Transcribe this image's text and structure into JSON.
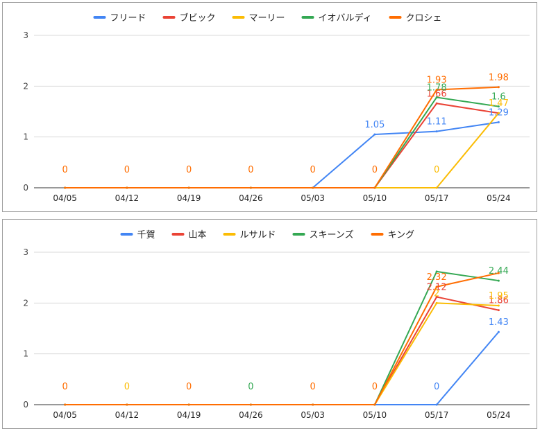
{
  "chart_data": [
    {
      "type": "line",
      "title": "",
      "xlabel": "",
      "ylabel": "",
      "categories": [
        "04/05",
        "04/12",
        "04/19",
        "04/26",
        "05/03",
        "05/10",
        "05/17",
        "05/24"
      ],
      "ylim": [
        0,
        3
      ],
      "yticks": [
        0,
        1,
        2,
        3
      ],
      "grid": true,
      "legend_position": "top",
      "series": [
        {
          "name": "フリード",
          "color": "#4285F4",
          "values": [
            0,
            0,
            0,
            0,
            0,
            1.05,
            1.11,
            1.29
          ],
          "labels": [
            null,
            null,
            null,
            null,
            null,
            "1.05",
            "1.11",
            "1.29"
          ]
        },
        {
          "name": "ブビック",
          "color": "#EA4335",
          "values": [
            0,
            0,
            0,
            0,
            0,
            0,
            1.66,
            1.47
          ],
          "labels": [
            null,
            null,
            null,
            null,
            null,
            null,
            "1.66",
            null
          ]
        },
        {
          "name": "マーリー",
          "color": "#FBBC04",
          "values": [
            0,
            0,
            0,
            0,
            0,
            0,
            0,
            1.47
          ],
          "labels": [
            null,
            null,
            null,
            null,
            null,
            null,
            "0",
            "1.47"
          ]
        },
        {
          "name": "イオバルディ",
          "color": "#34A853",
          "values": [
            0,
            0,
            0,
            0,
            0,
            0,
            1.78,
            1.6
          ],
          "labels": [
            null,
            null,
            null,
            null,
            null,
            null,
            "1.78",
            "1.6"
          ]
        },
        {
          "name": "クロシェ",
          "color": "#FF6D01",
          "values": [
            0,
            0,
            0,
            0,
            0,
            0,
            1.93,
            1.98
          ],
          "labels": [
            "0",
            "0",
            "0",
            "0",
            "0",
            "0",
            "1.93",
            "1.98"
          ]
        }
      ]
    },
    {
      "type": "line",
      "title": "",
      "xlabel": "",
      "ylabel": "",
      "categories": [
        "04/05",
        "04/12",
        "04/19",
        "04/26",
        "05/03",
        "05/10",
        "05/17",
        "05/24"
      ],
      "ylim": [
        0,
        3
      ],
      "yticks": [
        0,
        1,
        2,
        3
      ],
      "grid": true,
      "legend_position": "top",
      "series": [
        {
          "name": "千賀",
          "color": "#4285F4",
          "values": [
            0,
            0,
            0,
            0,
            0,
            0,
            0,
            1.43
          ],
          "labels": [
            null,
            null,
            null,
            null,
            null,
            null,
            "0",
            "1.43"
          ]
        },
        {
          "name": "山本",
          "color": "#EA4335",
          "values": [
            0,
            0,
            0,
            0,
            0,
            0,
            2.12,
            1.86
          ],
          "labels": [
            null,
            null,
            null,
            null,
            null,
            null,
            "2.12",
            "1.86"
          ]
        },
        {
          "name": "ルサルド",
          "color": "#FBBC04",
          "values": [
            0,
            0,
            0,
            0,
            0,
            0,
            2,
            1.95
          ],
          "labels": [
            null,
            "0",
            null,
            null,
            null,
            null,
            "2",
            "1.95"
          ]
        },
        {
          "name": "スキーンズ",
          "color": "#34A853",
          "values": [
            0,
            0,
            0,
            0,
            0,
            0,
            2.62,
            2.44
          ],
          "labels": [
            null,
            null,
            null,
            "0",
            null,
            null,
            null,
            "2.44"
          ]
        },
        {
          "name": "キング",
          "color": "#FF6D01",
          "values": [
            0,
            0,
            0,
            0,
            0,
            0,
            2.32,
            2.59
          ],
          "labels": [
            "0",
            null,
            "0",
            null,
            "0",
            "0",
            "2.32",
            null
          ]
        }
      ]
    }
  ]
}
